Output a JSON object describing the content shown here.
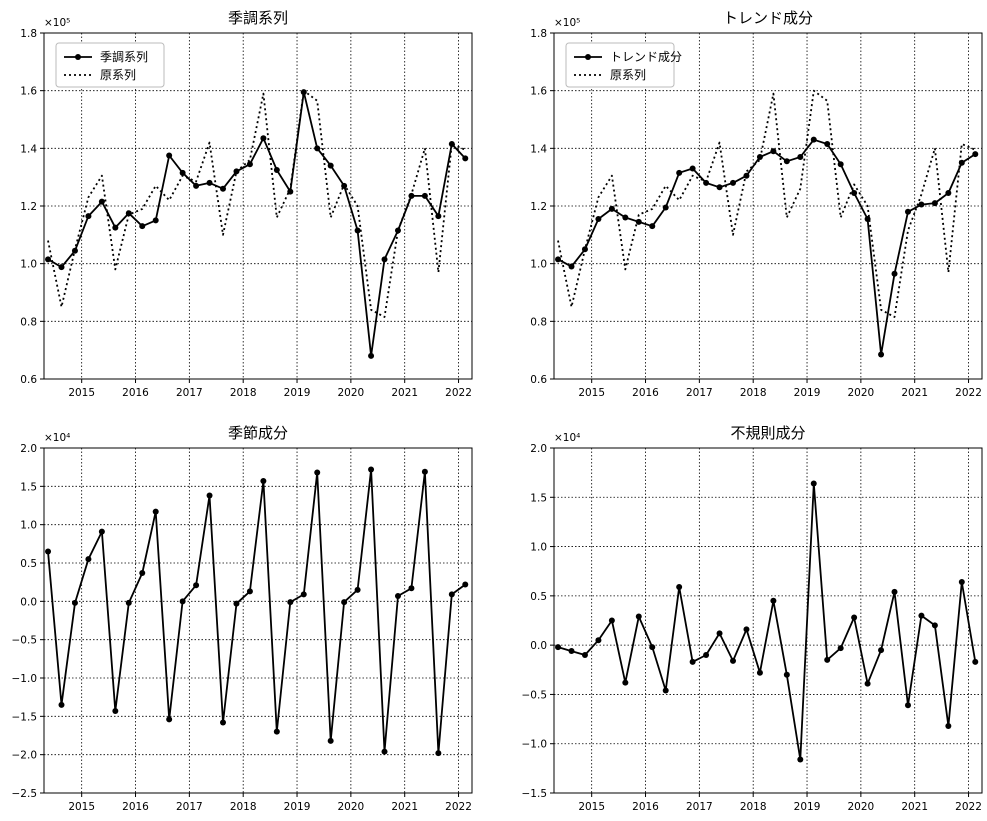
{
  "chart_data": [
    {
      "type": "line",
      "title": "季調系列",
      "multiplier": "×10⁵",
      "ylim": [
        60000,
        180000
      ],
      "yticks": [
        60000,
        80000,
        100000,
        120000,
        140000,
        160000,
        180000
      ],
      "ytick_labels": [
        "0.6",
        "0.8",
        "1.0",
        "1.2",
        "1.4",
        "1.6",
        "1.8"
      ],
      "xlim": [
        2014.3,
        2022.25
      ],
      "xticks": [
        2015,
        2016,
        2017,
        2018,
        2019,
        2020,
        2021,
        2022
      ],
      "xtick_labels": [
        "2015",
        "2016",
        "2017",
        "2018",
        "2019",
        "2020",
        "2021",
        "2022"
      ],
      "grid": true,
      "legend_position": "top-left",
      "legend": [
        "季調系列",
        "原系列"
      ],
      "x": [
        2014.375,
        2014.625,
        2014.875,
        2015.125,
        2015.375,
        2015.625,
        2015.875,
        2016.125,
        2016.375,
        2016.625,
        2016.875,
        2017.125,
        2017.375,
        2017.625,
        2017.875,
        2018.125,
        2018.375,
        2018.625,
        2018.875,
        2019.125,
        2019.375,
        2019.625,
        2019.875,
        2020.125,
        2020.375,
        2020.625,
        2020.875,
        2021.125,
        2021.375,
        2021.625,
        2021.875,
        2022.125
      ],
      "series": [
        {
          "name": "季調系列",
          "style": "solid-marker",
          "values": [
            101500,
            98800,
            104500,
            116500,
            121500,
            112500,
            117500,
            113000,
            115000,
            137500,
            131500,
            127000,
            128000,
            126000,
            132000,
            134500,
            143500,
            132500,
            125000,
            159500,
            140000,
            134000,
            127000,
            111500,
            68000,
            101500,
            111500,
            123500,
            123500,
            116500,
            141500,
            136500
          ]
        },
        {
          "name": "原系列",
          "style": "dotted",
          "values": [
            108000,
            85000,
            105000,
            123000,
            130500,
            98000,
            117000,
            119000,
            127000,
            122000,
            130500,
            128500,
            142000,
            110000,
            132000,
            136000,
            159000,
            116000,
            126000,
            160000,
            156500,
            116000,
            127500,
            120000,
            84000,
            81500,
            111500,
            124000,
            140000,
            97000,
            141500,
            139500
          ]
        }
      ]
    },
    {
      "type": "line",
      "title": "トレンド成分",
      "multiplier": "×10⁵",
      "ylim": [
        60000,
        180000
      ],
      "yticks": [
        60000,
        80000,
        100000,
        120000,
        140000,
        160000,
        180000
      ],
      "ytick_labels": [
        "0.6",
        "0.8",
        "1.0",
        "1.2",
        "1.4",
        "1.6",
        "1.8"
      ],
      "xlim": [
        2014.3,
        2022.25
      ],
      "xticks": [
        2015,
        2016,
        2017,
        2018,
        2019,
        2020,
        2021,
        2022
      ],
      "xtick_labels": [
        "2015",
        "2016",
        "2017",
        "2018",
        "2019",
        "2020",
        "2021",
        "2022"
      ],
      "grid": true,
      "legend_position": "top-left",
      "legend": [
        "トレンド成分",
        "原系列"
      ],
      "x": [
        2014.375,
        2014.625,
        2014.875,
        2015.125,
        2015.375,
        2015.625,
        2015.875,
        2016.125,
        2016.375,
        2016.625,
        2016.875,
        2017.125,
        2017.375,
        2017.625,
        2017.875,
        2018.125,
        2018.375,
        2018.625,
        2018.875,
        2019.125,
        2019.375,
        2019.625,
        2019.875,
        2020.125,
        2020.375,
        2020.625,
        2020.875,
        2021.125,
        2021.375,
        2021.625,
        2021.875,
        2022.125
      ],
      "series": [
        {
          "name": "トレンド成分",
          "style": "solid-marker",
          "values": [
            101500,
            99000,
            105000,
            115500,
            119000,
            116000,
            114500,
            113000,
            119500,
            131500,
            133000,
            128000,
            126500,
            128000,
            130500,
            137000,
            139000,
            135500,
            137000,
            143000,
            141500,
            134500,
            124500,
            115500,
            68500,
            96500,
            118000,
            120500,
            121000,
            124500,
            135000,
            138000
          ]
        },
        {
          "name": "原系列",
          "style": "dotted",
          "values": [
            108000,
            85000,
            105000,
            123000,
            130500,
            98000,
            117000,
            119000,
            127000,
            122000,
            130500,
            128500,
            142000,
            110000,
            132000,
            136000,
            159000,
            116000,
            126000,
            160000,
            156500,
            116000,
            127500,
            120000,
            84000,
            81500,
            111500,
            124000,
            140000,
            97000,
            141500,
            139500
          ]
        }
      ]
    },
    {
      "type": "line",
      "title": "季節成分",
      "multiplier": "×10⁴",
      "ylim": [
        -25000,
        20000
      ],
      "yticks": [
        -25000,
        -20000,
        -15000,
        -10000,
        -5000,
        0,
        5000,
        10000,
        15000,
        20000
      ],
      "ytick_labels": [
        "−2.5",
        "−2.0",
        "−1.5",
        "−1.0",
        "−0.5",
        "0.0",
        "0.5",
        "1.0",
        "1.5",
        "2.0"
      ],
      "xlim": [
        2014.3,
        2022.25
      ],
      "xticks": [
        2015,
        2016,
        2017,
        2018,
        2019,
        2020,
        2021,
        2022
      ],
      "xtick_labels": [
        "2015",
        "2016",
        "2017",
        "2018",
        "2019",
        "2020",
        "2021",
        "2022"
      ],
      "grid": true,
      "x": [
        2014.375,
        2014.625,
        2014.875,
        2015.125,
        2015.375,
        2015.625,
        2015.875,
        2016.125,
        2016.375,
        2016.625,
        2016.875,
        2017.125,
        2017.375,
        2017.625,
        2017.875,
        2018.125,
        2018.375,
        2018.625,
        2018.875,
        2019.125,
        2019.375,
        2019.625,
        2019.875,
        2020.125,
        2020.375,
        2020.625,
        2020.875,
        2021.125,
        2021.375,
        2021.625,
        2021.875,
        2022.125
      ],
      "series": [
        {
          "name": "",
          "style": "solid-marker",
          "values": [
            6500,
            -13500,
            -200,
            5500,
            9100,
            -14300,
            -200,
            3700,
            11700,
            -15400,
            0,
            2100,
            13800,
            -15800,
            -300,
            1300,
            15700,
            -17000,
            -100,
            900,
            16800,
            -18200,
            -100,
            1500,
            17200,
            -19600,
            700,
            1700,
            16900,
            -19800,
            900,
            2200
          ]
        }
      ]
    },
    {
      "type": "line",
      "title": "不規則成分",
      "multiplier": "×10⁴",
      "ylim": [
        -15000,
        20000
      ],
      "yticks": [
        -15000,
        -10000,
        -5000,
        0,
        5000,
        10000,
        15000,
        20000
      ],
      "ytick_labels": [
        "−1.5",
        "−1.0",
        "−0.5",
        "0.0",
        "0.5",
        "1.0",
        "1.5",
        "2.0"
      ],
      "xlim": [
        2014.3,
        2022.25
      ],
      "xticks": [
        2015,
        2016,
        2017,
        2018,
        2019,
        2020,
        2021,
        2022
      ],
      "xtick_labels": [
        "2015",
        "2016",
        "2017",
        "2018",
        "2019",
        "2020",
        "2021",
        "2022"
      ],
      "grid": true,
      "x": [
        2014.375,
        2014.625,
        2014.875,
        2015.125,
        2015.375,
        2015.625,
        2015.875,
        2016.125,
        2016.375,
        2016.625,
        2016.875,
        2017.125,
        2017.375,
        2017.625,
        2017.875,
        2018.125,
        2018.375,
        2018.625,
        2018.875,
        2019.125,
        2019.375,
        2019.625,
        2019.875,
        2020.125,
        2020.375,
        2020.625,
        2020.875,
        2021.125,
        2021.375,
        2021.625,
        2021.875,
        2022.125
      ],
      "series": [
        {
          "name": "",
          "style": "solid-marker",
          "values": [
            -200,
            -600,
            -1000,
            500,
            2500,
            -3800,
            2900,
            -200,
            -4600,
            5900,
            -1700,
            -1000,
            1200,
            -1600,
            1600,
            -2800,
            4500,
            -3000,
            -11600,
            16400,
            -1500,
            -300,
            2800,
            -3900,
            -500,
            5400,
            -6100,
            3000,
            2000,
            -8200,
            6400,
            -1700
          ]
        }
      ]
    }
  ],
  "colors": {
    "line": "#000000",
    "grid": "#000000",
    "background": "#ffffff"
  }
}
